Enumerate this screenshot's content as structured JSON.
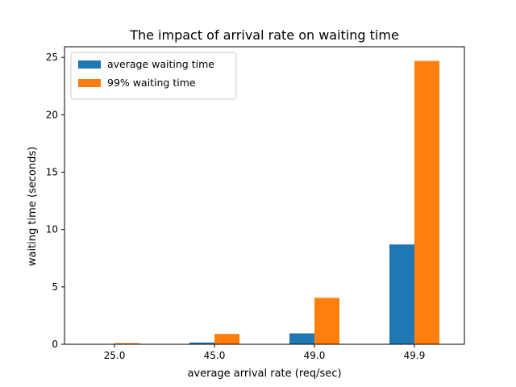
{
  "chart_data": {
    "type": "bar",
    "title": "The impact of arrival rate on waiting time",
    "xlabel": "average arrival rate (req/sec)",
    "ylabel": "waiting time (seconds)",
    "categories": [
      "25.0",
      "45.0",
      "49.0",
      "49.9"
    ],
    "series": [
      {
        "name": "average waiting time",
        "color": "#1f77b4",
        "values": [
          0.02,
          0.15,
          0.95,
          8.7
        ]
      },
      {
        "name": "99% waiting time",
        "color": "#ff7f0e",
        "values": [
          0.1,
          0.9,
          4.05,
          24.7
        ]
      }
    ],
    "ylim": [
      0,
      25.93
    ],
    "yticks": [
      0,
      5,
      10,
      15,
      20,
      25
    ],
    "grid": false,
    "legend_position": "upper-left"
  }
}
